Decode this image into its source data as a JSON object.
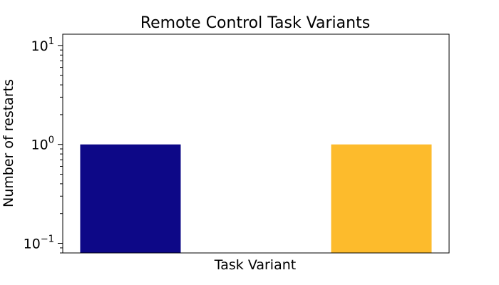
{
  "chart_data": {
    "type": "bar",
    "title": "Remote Control Task Variants",
    "xlabel": "Task Variant",
    "ylabel": "Number of restarts",
    "yscale": "log",
    "ylim": [
      0.08,
      13
    ],
    "y_ticks": [
      {
        "base": "10",
        "exp": "−1",
        "value": 0.1
      },
      {
        "base": "10",
        "exp": "0",
        "value": 1
      },
      {
        "base": "10",
        "exp": "1",
        "value": 10
      }
    ],
    "grid": false,
    "legend": "none",
    "series": [
      {
        "values": [
          1,
          1
        ],
        "colors": [
          "#0d0887",
          "#fdbb2c"
        ]
      }
    ]
  }
}
